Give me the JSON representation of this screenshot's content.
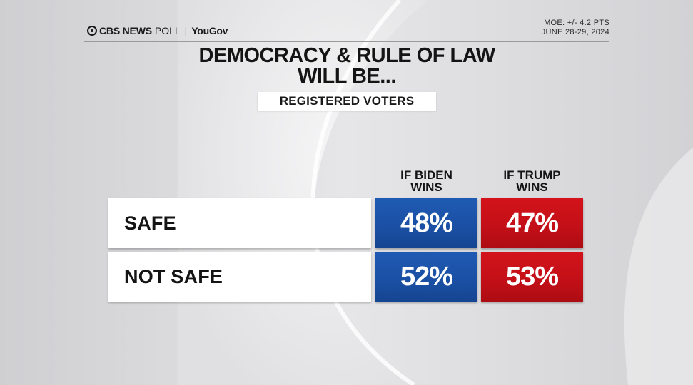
{
  "header": {
    "brand": "CBS NEWS",
    "poll": "POLL",
    "separator": "|",
    "partner": "YouGov",
    "moe": "MOE: +/- 4.2 PTS",
    "dates": "JUNE 28-29, 2024"
  },
  "colors": {
    "biden_blue": "#1a4fa3",
    "trump_red": "#c20f17",
    "background": "#d9d9db"
  },
  "chart_data": {
    "type": "table",
    "title_line1": "DEMOCRACY & RULE OF LAW",
    "title_line2": "WILL BE...",
    "subtitle": "REGISTERED VOTERS",
    "columns": [
      {
        "label_line1": "IF BIDEN",
        "label_line2": "WINS"
      },
      {
        "label_line1": "IF TRUMP",
        "label_line2": "WINS"
      }
    ],
    "rows": [
      {
        "label": "SAFE",
        "values": [
          "48%",
          "47%"
        ]
      },
      {
        "label": "NOT SAFE",
        "values": [
          "52%",
          "53%"
        ]
      }
    ]
  }
}
